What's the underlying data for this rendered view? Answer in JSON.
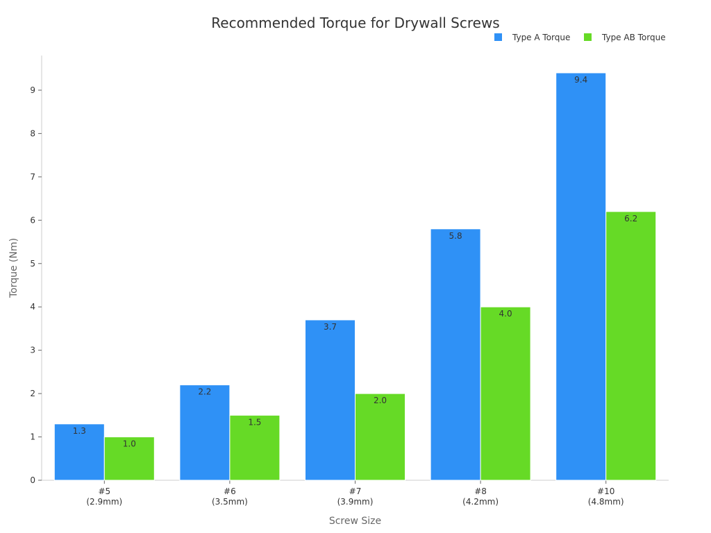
{
  "chart_data": {
    "type": "bar",
    "title": "Recommended Torque for Drywall Screws",
    "xlabel": "Screw Size",
    "ylabel": "Torque (Nm)",
    "categories": [
      [
        "#5",
        "(2.9mm)"
      ],
      [
        "#6",
        "(3.5mm)"
      ],
      [
        "#7",
        "(3.9mm)"
      ],
      [
        "#8",
        "(4.2mm)"
      ],
      [
        "#10",
        "(4.8mm)"
      ]
    ],
    "series": [
      {
        "name": "Type A Torque",
        "color": "#2f91f6",
        "values": [
          1.3,
          2.2,
          3.7,
          5.8,
          9.4
        ]
      },
      {
        "name": "Type AB Torque",
        "color": "#66da26",
        "values": [
          1.0,
          1.5,
          2.0,
          4.0,
          6.2
        ]
      }
    ],
    "ylim": [
      0,
      9.8
    ],
    "yticks": [
      0,
      1,
      2,
      3,
      4,
      5,
      6,
      7,
      8,
      9
    ],
    "grid": false,
    "legend": "top-right",
    "value_labels": true
  }
}
